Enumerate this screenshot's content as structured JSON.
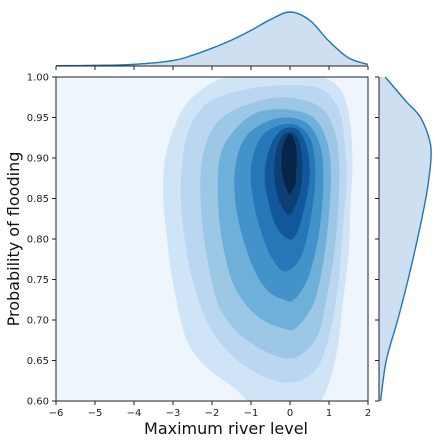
{
  "chart_data": {
    "type": "heatmap",
    "subtype": "joint-kde-filled-contours",
    "title": "",
    "xlabel": "Maximum river level",
    "ylabel": "Probability of flooding",
    "xlim": [
      -6,
      2
    ],
    "ylim": [
      0.6,
      1.0
    ],
    "x_ticks": [
      -6,
      -5,
      -4,
      -3,
      -2,
      -1,
      0,
      1,
      2
    ],
    "x_tick_labels": [
      "−6",
      "−5",
      "−4",
      "−3",
      "−2",
      "−1",
      "0",
      "1",
      "2"
    ],
    "y_ticks": [
      0.6,
      0.65,
      0.7,
      0.75,
      0.8,
      0.85,
      0.9,
      0.95,
      1.0
    ],
    "y_tick_labels": [
      "0.60",
      "0.65",
      "0.70",
      "0.75",
      "0.80",
      "0.85",
      "0.90",
      "0.95",
      "1.00"
    ],
    "grid": false,
    "density_peak": {
      "x": 0.0,
      "y": 0.91
    },
    "density_secondary_peak": {
      "x": 0.0,
      "y": 0.875
    },
    "contour_levels": 9,
    "colors": {
      "background_level": "#eef5fc",
      "levels": [
        "#d0e4f7",
        "#bad6f0",
        "#9cc7e5",
        "#6fb0db",
        "#4393ca",
        "#2577b7",
        "#11579a",
        "#0c3f73",
        "#08244a"
      ],
      "marginal_line": "#1f77b4",
      "marginal_fill": "#cddff0"
    },
    "marginal_x": {
      "x": [
        -6,
        -5,
        -4,
        -3,
        -2.5,
        -2,
        -1.5,
        -1,
        -0.5,
        0,
        0.5,
        1,
        1.5,
        2
      ],
      "density": [
        0.005,
        0.012,
        0.03,
        0.1,
        0.2,
        0.33,
        0.48,
        0.66,
        0.86,
        1.0,
        0.85,
        0.46,
        0.15,
        0.03
      ]
    },
    "marginal_y": {
      "y": [
        0.6,
        0.65,
        0.7,
        0.75,
        0.8,
        0.85,
        0.875,
        0.9,
        0.92,
        0.95,
        0.97,
        1.0
      ],
      "density": [
        0.03,
        0.14,
        0.36,
        0.56,
        0.74,
        0.9,
        0.96,
        1.0,
        0.98,
        0.8,
        0.52,
        0.12
      ]
    }
  }
}
